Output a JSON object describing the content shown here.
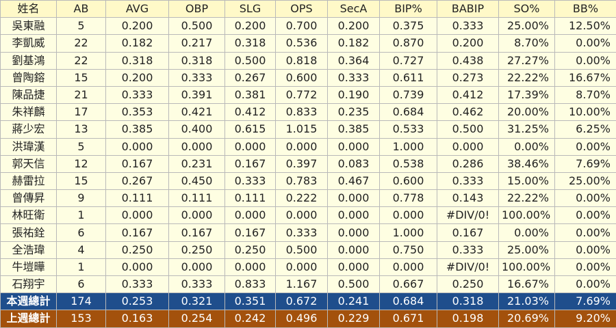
{
  "columns": [
    "姓名",
    "AB",
    "AVG",
    "OBP",
    "SLG",
    "OPS",
    "SecA",
    "BIP%",
    "BABIP",
    "SO%",
    "BB%"
  ],
  "rows": [
    [
      "吳東融",
      "5",
      "0.200",
      "0.500",
      "0.200",
      "0.700",
      "0.200",
      "0.375",
      "0.333",
      "25.00%",
      "12.50%"
    ],
    [
      "李凱威",
      "22",
      "0.182",
      "0.217",
      "0.318",
      "0.536",
      "0.182",
      "0.870",
      "0.200",
      "8.70%",
      "0.00%"
    ],
    [
      "劉基鴻",
      "22",
      "0.318",
      "0.318",
      "0.500",
      "0.818",
      "0.364",
      "0.727",
      "0.438",
      "27.27%",
      "0.00%"
    ],
    [
      "曾陶鎔",
      "15",
      "0.200",
      "0.333",
      "0.267",
      "0.600",
      "0.333",
      "0.611",
      "0.273",
      "22.22%",
      "16.67%"
    ],
    [
      "陳品捷",
      "21",
      "0.333",
      "0.391",
      "0.381",
      "0.772",
      "0.190",
      "0.739",
      "0.412",
      "17.39%",
      "8.70%"
    ],
    [
      "朱祥麟",
      "17",
      "0.353",
      "0.421",
      "0.412",
      "0.833",
      "0.235",
      "0.684",
      "0.462",
      "20.00%",
      "10.00%"
    ],
    [
      "蔣少宏",
      "13",
      "0.385",
      "0.400",
      "0.615",
      "1.015",
      "0.385",
      "0.533",
      "0.500",
      "31.25%",
      "6.25%"
    ],
    [
      "洪瑋漢",
      "5",
      "0.000",
      "0.000",
      "0.000",
      "0.000",
      "0.000",
      "1.000",
      "0.000",
      "0.00%",
      "0.00%"
    ],
    [
      "郭天信",
      "12",
      "0.167",
      "0.231",
      "0.167",
      "0.397",
      "0.083",
      "0.538",
      "0.286",
      "38.46%",
      "7.69%"
    ],
    [
      "赫雷拉",
      "15",
      "0.267",
      "0.450",
      "0.333",
      "0.783",
      "0.467",
      "0.600",
      "0.333",
      "15.00%",
      "25.00%"
    ],
    [
      "曾傳昇",
      "9",
      "0.111",
      "0.111",
      "0.111",
      "0.222",
      "0.000",
      "0.778",
      "0.143",
      "22.22%",
      "0.00%"
    ],
    [
      "林旺衛",
      "1",
      "0.000",
      "0.000",
      "0.000",
      "0.000",
      "0.000",
      "0.000",
      "#DIV/0!",
      "100.00%",
      "0.00%"
    ],
    [
      "張祐銓",
      "6",
      "0.167",
      "0.167",
      "0.167",
      "0.333",
      "0.000",
      "1.000",
      "0.167",
      "0.00%",
      "0.00%"
    ],
    [
      "全浩瑋",
      "4",
      "0.250",
      "0.250",
      "0.250",
      "0.500",
      "0.000",
      "0.750",
      "0.333",
      "25.00%",
      "0.00%"
    ],
    [
      "牛塏曄",
      "1",
      "0.000",
      "0.000",
      "0.000",
      "0.000",
      "0.000",
      "0.000",
      "#DIV/0!",
      "100.00%",
      "0.00%"
    ],
    [
      "石翔宇",
      "6",
      "0.333",
      "0.333",
      "0.833",
      "1.167",
      "0.500",
      "0.667",
      "0.250",
      "16.67%",
      "0.00%"
    ]
  ],
  "totals": {
    "this_week": [
      "本週總計",
      "174",
      "0.253",
      "0.321",
      "0.351",
      "0.672",
      "0.241",
      "0.684",
      "0.318",
      "21.03%",
      "7.69%"
    ],
    "last_week": [
      "上週總計",
      "153",
      "0.163",
      "0.254",
      "0.242",
      "0.496",
      "0.229",
      "0.671",
      "0.198",
      "20.69%",
      "9.20%"
    ]
  },
  "colors": {
    "header_bg": "#fff9c8",
    "row_bg": "#fefee2",
    "this_week_bg": "#1f4e8c",
    "last_week_bg": "#a3510c"
  }
}
